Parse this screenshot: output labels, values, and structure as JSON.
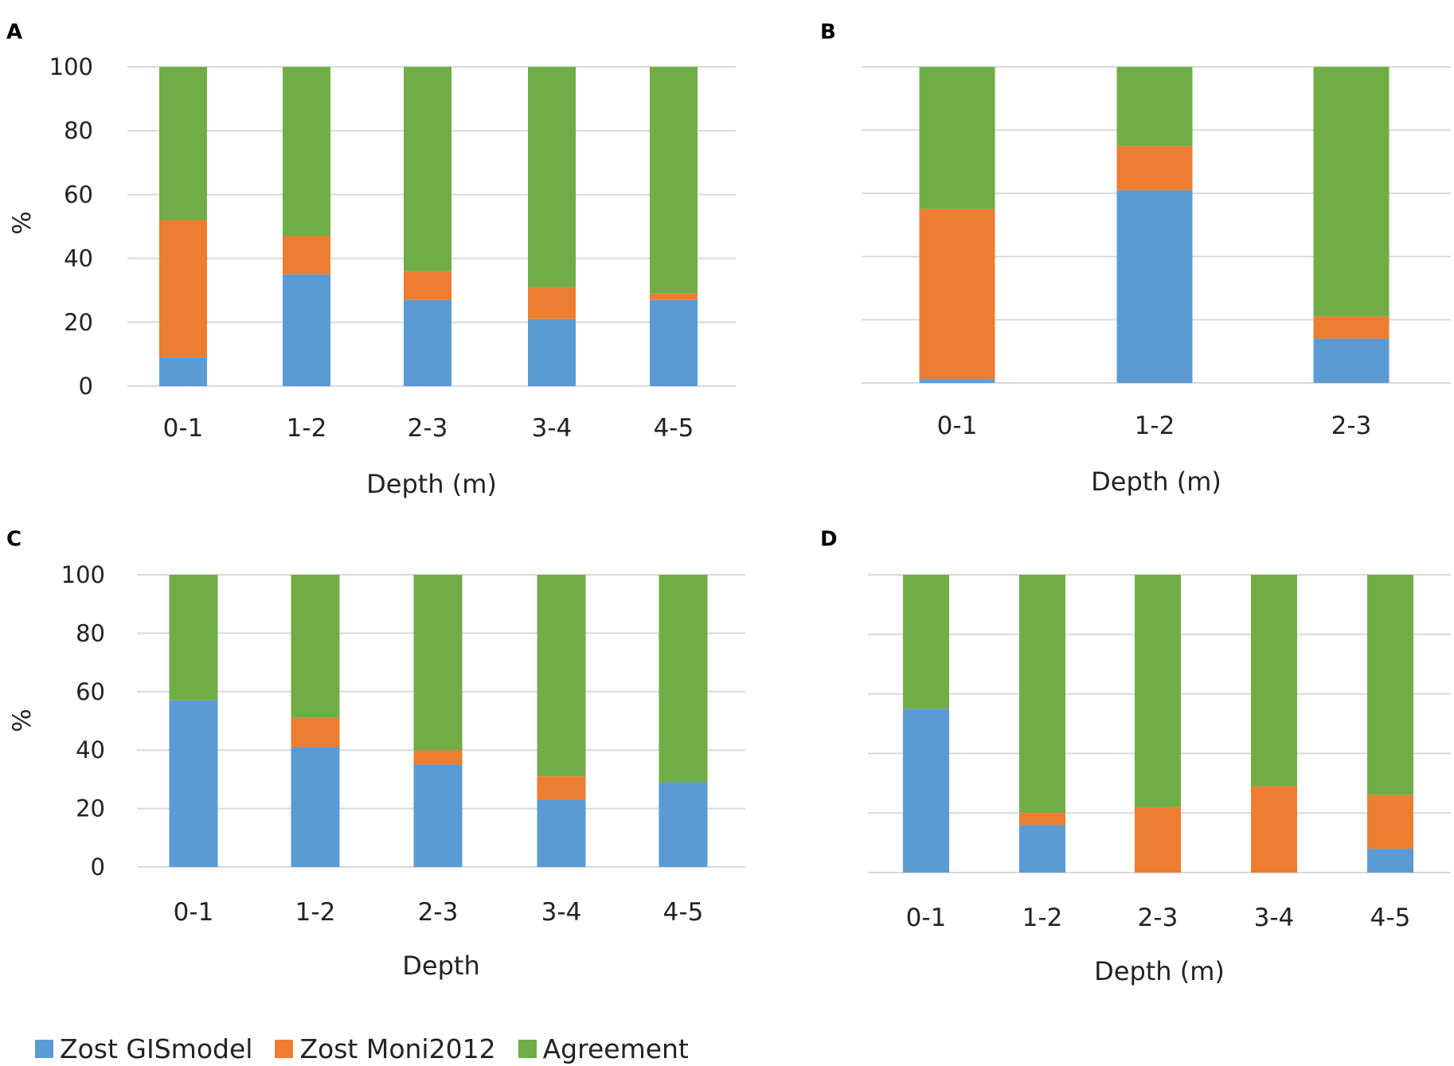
{
  "colors": {
    "gismodel": "#5b9bd5",
    "moni2012": "#ed7d31",
    "agreement": "#70ad47",
    "grid": "#d9d9d9",
    "text": "#222222"
  },
  "legend": [
    {
      "key": "gismodel",
      "label": "Zost GISmodel"
    },
    {
      "key": "moni2012",
      "label": "Zost Moni2012"
    },
    {
      "key": "agreement",
      "label": "Agreement"
    }
  ],
  "chart_data": [
    {
      "panel": "A",
      "type": "bar",
      "stacked": true,
      "ylabel": "%",
      "xlabel": "Depth (m)",
      "ylim": [
        0,
        100
      ],
      "yticks": [
        0,
        20,
        40,
        60,
        80,
        100
      ],
      "show_ytick_labels": true,
      "categories": [
        "0-1",
        "1-2",
        "2-3",
        "3-4",
        "4-5"
      ],
      "series": [
        {
          "name": "Zost GISmodel",
          "key": "gismodel",
          "values": [
            9,
            35,
            27,
            21,
            27
          ]
        },
        {
          "name": "Zost Moni2012",
          "key": "moni2012",
          "values": [
            43,
            12,
            9,
            10,
            2
          ]
        },
        {
          "name": "Agreement",
          "key": "agreement",
          "values": [
            48,
            53,
            64,
            69,
            71
          ]
        }
      ]
    },
    {
      "panel": "B",
      "type": "bar",
      "stacked": true,
      "ylabel": "",
      "xlabel": "Depth (m)",
      "ylim": [
        0,
        100
      ],
      "yticks": [
        0,
        20,
        40,
        60,
        80,
        100
      ],
      "show_ytick_labels": false,
      "categories": [
        "0-1",
        "1-2",
        "2-3"
      ],
      "series": [
        {
          "name": "Zost GISmodel",
          "key": "gismodel",
          "values": [
            1,
            61,
            14
          ]
        },
        {
          "name": "Zost Moni2012",
          "key": "moni2012",
          "values": [
            54,
            14,
            7
          ]
        },
        {
          "name": "Agreement",
          "key": "agreement",
          "values": [
            45,
            25,
            79
          ]
        }
      ]
    },
    {
      "panel": "C",
      "type": "bar",
      "stacked": true,
      "ylabel": "%",
      "xlabel": "Depth",
      "ylim": [
        0,
        100
      ],
      "yticks": [
        0,
        20,
        40,
        60,
        80,
        100
      ],
      "show_ytick_labels": true,
      "categories": [
        "0-1",
        "1-2",
        "2-3",
        "3-4",
        "4-5"
      ],
      "series": [
        {
          "name": "Zost GISmodel",
          "key": "gismodel",
          "values": [
            57,
            41,
            35,
            23,
            29
          ]
        },
        {
          "name": "Zost Moni2012",
          "key": "moni2012",
          "values": [
            0,
            10,
            5,
            8,
            0
          ]
        },
        {
          "name": "Agreement",
          "key": "agreement",
          "values": [
            43,
            49,
            60,
            69,
            71
          ]
        }
      ]
    },
    {
      "panel": "D",
      "type": "bar",
      "stacked": true,
      "ylabel": "",
      "xlabel": "Depth (m)",
      "ylim": [
        0,
        100
      ],
      "yticks": [
        0,
        20,
        40,
        60,
        80,
        100
      ],
      "show_ytick_labels": false,
      "categories": [
        "0-1",
        "1-2",
        "2-3",
        "3-4",
        "4-5"
      ],
      "series": [
        {
          "name": "Zost GISmodel",
          "key": "gismodel",
          "values": [
            55,
            16,
            0,
            0,
            8
          ]
        },
        {
          "name": "Zost Moni2012",
          "key": "moni2012",
          "values": [
            0,
            4,
            22,
            29,
            18
          ]
        },
        {
          "name": "Agreement",
          "key": "agreement",
          "values": [
            45,
            80,
            78,
            71,
            74
          ]
        }
      ]
    }
  ]
}
